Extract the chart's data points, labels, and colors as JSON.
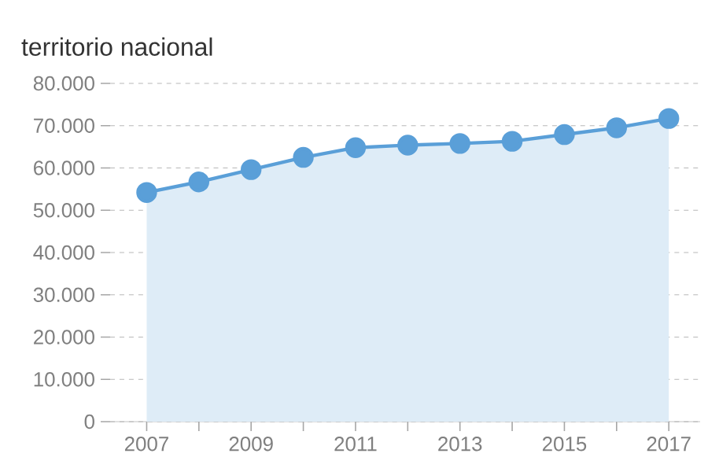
{
  "chart_data": {
    "type": "area",
    "title": "territorio nacional",
    "x": [
      2007,
      2008,
      2009,
      2010,
      2011,
      2012,
      2013,
      2014,
      2015,
      2016,
      2017
    ],
    "series": [
      {
        "color": "#5a9fd8",
        "values": [
          54200,
          56700,
          59600,
          62500,
          64800,
          65400,
          65800,
          66300,
          67900,
          69500,
          71700
        ]
      }
    ],
    "xlim": [
      2006.3,
      2017.6
    ],
    "xticks": [
      2007,
      {
        "value": 2008,
        "label": null
      },
      2009,
      {
        "value": 2010,
        "label": null
      },
      2011,
      {
        "value": 2012,
        "label": null
      },
      2013,
      {
        "value": 2014,
        "label": null
      },
      2015,
      {
        "value": 2016,
        "label": null
      },
      2017
    ],
    "ylim": [
      0,
      80000
    ],
    "yticks": [
      0,
      {
        "value": 10000,
        "label": "10.000"
      },
      {
        "value": 20000,
        "label": "20.000"
      },
      {
        "value": 30000,
        "label": "30.000"
      },
      {
        "value": 40000,
        "label": "40.000"
      },
      {
        "value": 50000,
        "label": "50.000"
      },
      {
        "value": 60000,
        "label": "60.000"
      },
      {
        "value": 70000,
        "label": "70.000"
      },
      {
        "value": 80000,
        "label": "80.000"
      }
    ],
    "grid": "y",
    "marker": "circle",
    "legend": false
  }
}
